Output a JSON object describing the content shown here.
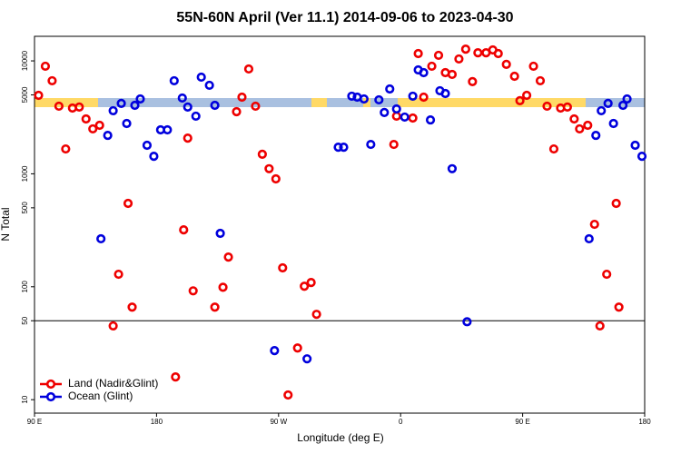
{
  "chart_data": {
    "type": "scatter",
    "title": "55N-60N April (Ver 11.1)   2014-09-06 to 2023-04-30",
    "x_label": "Longitude (deg E)",
    "y_label": "N Total",
    "xlim": [
      90,
      540
    ],
    "ylim": [
      7.6,
      16500
    ],
    "log_y": true,
    "xticks": [
      {
        "value": 90,
        "label": "90 E"
      },
      {
        "value": 180,
        "label": "180"
      },
      {
        "value": 270,
        "label": "90 W"
      },
      {
        "value": 360,
        "label": "0"
      },
      {
        "value": 450,
        "label": "90 E"
      },
      {
        "value": 540,
        "label": "180"
      }
    ],
    "yticks": [
      10,
      50,
      100,
      500,
      1000,
      5000,
      10000
    ],
    "reference_line": 50,
    "legend": "lower left",
    "series": [
      {
        "name": "Land (Nadir&Glint)",
        "color": "#ee0000",
        "x": [
          93,
          98,
          103,
          108,
          113,
          118,
          123,
          128,
          133,
          138,
          148,
          152,
          159,
          162,
          194,
          200,
          203,
          207,
          223,
          229,
          233,
          239,
          243,
          248,
          253,
          258,
          263,
          268,
          273,
          277,
          284,
          289,
          294,
          298,
          355,
          357,
          369,
          373,
          377,
          383,
          388,
          393,
          398,
          403,
          408,
          413,
          417,
          423,
          428,
          432,
          438,
          444,
          448,
          453,
          458,
          463,
          468,
          473,
          478,
          483,
          488,
          492,
          498,
          503,
          507,
          512,
          519,
          521
        ],
        "values": [
          4950,
          8970,
          6670,
          3970,
          1660,
          3820,
          3900,
          3060,
          2500,
          2690,
          45,
          129,
          547,
          66,
          15.9,
          319,
          2070,
          92,
          66,
          99,
          183,
          3550,
          4770,
          8480,
          3970,
          1490,
          1110,
          902,
          147,
          11,
          28.7,
          101,
          109,
          57,
          1820,
          3240,
          3120,
          11600,
          4770,
          8970,
          11200,
          7870,
          7590,
          10400,
          12700,
          6550,
          11800,
          11800,
          12500,
          11600,
          9310,
          7310,
          4440,
          4950,
          8970,
          6670,
          3970,
          1660,
          3820,
          3900,
          3060,
          2500,
          2690,
          357,
          45,
          129,
          547,
          66
        ]
      },
      {
        "name": "Ocean (Glint)",
        "color": "#0000dd",
        "x": [
          139,
          144,
          148,
          154,
          158,
          164,
          168,
          173,
          178,
          183,
          188,
          193,
          199,
          203,
          209,
          213,
          219,
          223,
          227,
          267,
          291,
          314,
          318,
          324,
          328,
          333,
          338,
          344,
          348,
          352,
          357,
          363,
          369,
          373,
          377,
          382,
          389,
          393,
          398,
          409,
          499,
          504,
          508,
          513,
          517,
          524,
          527,
          533,
          538
        ],
        "values": [
          266,
          2190,
          3620,
          4200,
          2790,
          4040,
          4600,
          1790,
          1430,
          2450,
          2450,
          6670,
          4690,
          3900,
          3240,
          7180,
          6080,
          4040,
          297,
          27.2,
          23,
          1720,
          1720,
          4870,
          4770,
          4600,
          1820,
          4520,
          3490,
          5640,
          3750,
          3180,
          4870,
          8320,
          7870,
          3000,
          5440,
          5140,
          1110,
          49,
          266,
          2190,
          3620,
          4200,
          2790,
          4040,
          4600,
          1790,
          1430
        ]
      }
    ]
  }
}
